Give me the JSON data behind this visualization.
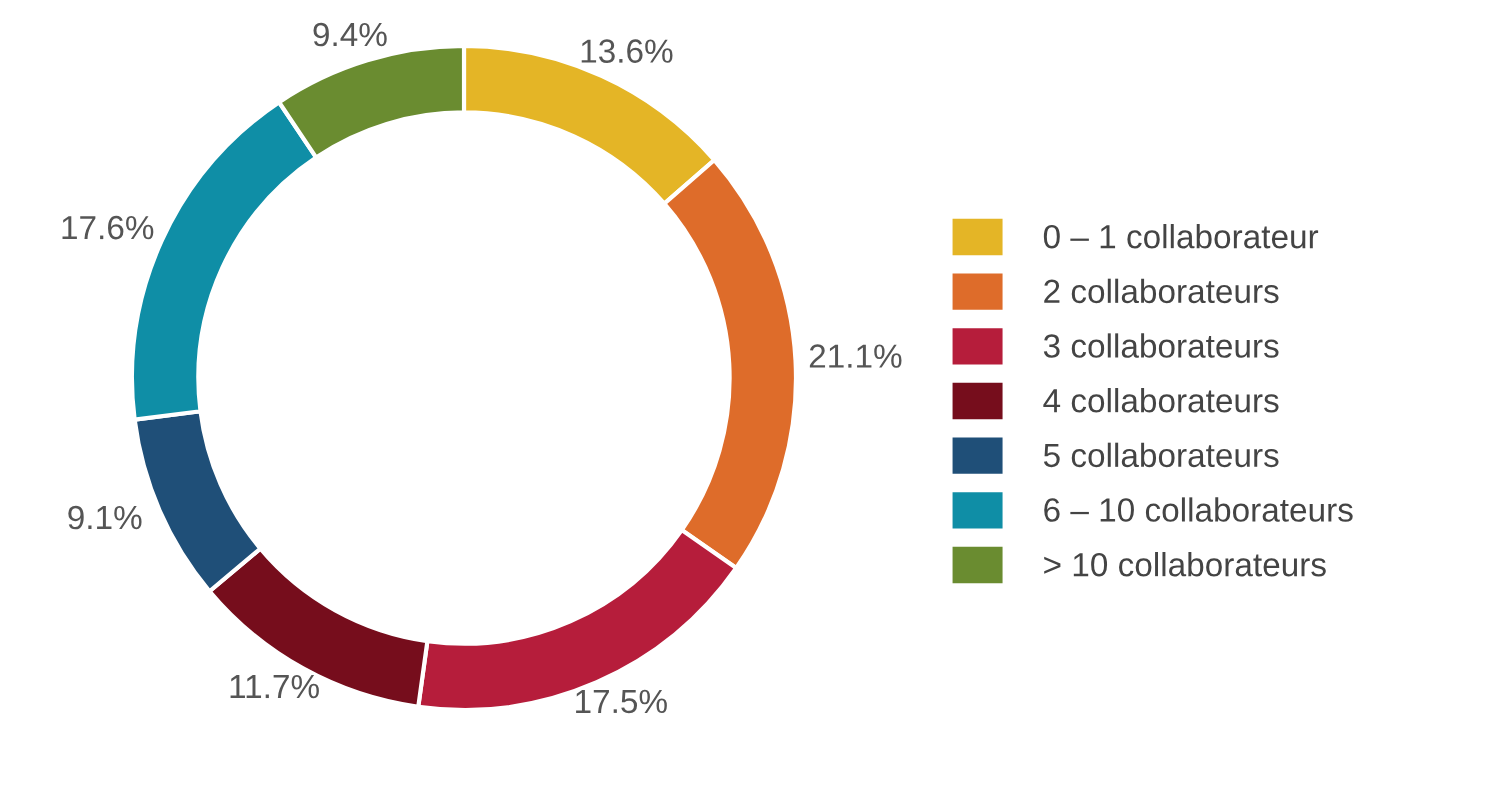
{
  "chart_data": {
    "type": "donut",
    "categories": [
      "0 – 1 collaborateur",
      "2 collaborateurs",
      "3 collaborateurs",
      "4 collaborateurs",
      "5 collaborateurs",
      "6 – 10 collaborateurs",
      "> 10 collaborateurs"
    ],
    "values": [
      13.6,
      21.1,
      17.5,
      11.7,
      9.1,
      17.6,
      9.4
    ],
    "colors": [
      "#e4b526",
      "#de6c2a",
      "#b61d3b",
      "#760d1c",
      "#1f4f78",
      "#0f8ea6",
      "#6a8c30"
    ],
    "value_labels": [
      "13.6%",
      "21.1%",
      "17.5%",
      "11.7%",
      "9.1%",
      "17.6%",
      "9.4%"
    ],
    "legend": "right"
  }
}
